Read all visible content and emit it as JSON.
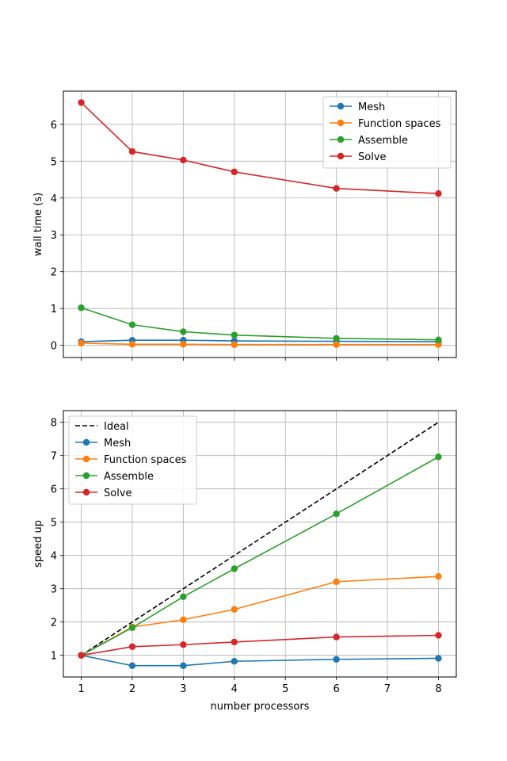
{
  "chart_data": [
    {
      "type": "line",
      "title": "",
      "xlabel": "",
      "ylabel": "wall time (s)",
      "x": [
        1,
        2,
        3,
        4,
        6,
        8
      ],
      "xlim": [
        0.65,
        8.35
      ],
      "ylim": [
        -0.33,
        6.9
      ],
      "xticks": [
        "1",
        "2",
        "3",
        "4",
        "5",
        "6",
        "7",
        "8"
      ],
      "show_xticklabels": false,
      "yticks": [
        "0",
        "1",
        "2",
        "3",
        "4",
        "5",
        "6"
      ],
      "grid": true,
      "legend_position": "top-right",
      "series": [
        {
          "name": "Mesh",
          "color": "#1f77b4",
          "marker": "circle",
          "dashed": false,
          "values": [
            0.1,
            0.14,
            0.14,
            0.12,
            0.11,
            0.1
          ]
        },
        {
          "name": "Function spaces",
          "color": "#ff7f0e",
          "marker": "circle",
          "dashed": false,
          "values": [
            0.06,
            0.03,
            0.03,
            0.02,
            0.02,
            0.02
          ]
        },
        {
          "name": "Assemble",
          "color": "#2ca02c",
          "marker": "circle",
          "dashed": false,
          "values": [
            1.02,
            0.56,
            0.37,
            0.28,
            0.19,
            0.15
          ]
        },
        {
          "name": "Solve",
          "color": "#d62728",
          "marker": "circle",
          "dashed": false,
          "values": [
            6.59,
            5.26,
            5.03,
            4.71,
            4.26,
            4.12
          ]
        }
      ]
    },
    {
      "type": "line",
      "title": "",
      "xlabel": "number processors",
      "ylabel": "speed up",
      "x": [
        1,
        2,
        3,
        4,
        6,
        8
      ],
      "xlim": [
        0.65,
        8.35
      ],
      "ylim": [
        0.35,
        8.35
      ],
      "xticks": [
        "1",
        "2",
        "3",
        "4",
        "5",
        "6",
        "7",
        "8"
      ],
      "show_xticklabels": true,
      "yticks": [
        "1",
        "2",
        "3",
        "4",
        "5",
        "6",
        "7",
        "8"
      ],
      "grid": true,
      "legend_position": "top-left",
      "series": [
        {
          "name": "Ideal",
          "color": "#000000",
          "marker": "none",
          "dashed": true,
          "x": [
            1,
            8
          ],
          "values": [
            1,
            8
          ]
        },
        {
          "name": "Mesh",
          "color": "#1f77b4",
          "marker": "circle",
          "dashed": false,
          "values": [
            1.0,
            0.69,
            0.69,
            0.82,
            0.88,
            0.91
          ]
        },
        {
          "name": "Function spaces",
          "color": "#ff7f0e",
          "marker": "circle",
          "dashed": false,
          "values": [
            1.0,
            1.85,
            2.07,
            2.38,
            3.21,
            3.37
          ]
        },
        {
          "name": "Assemble",
          "color": "#2ca02c",
          "marker": "circle",
          "dashed": false,
          "values": [
            1.0,
            1.83,
            2.76,
            3.6,
            5.25,
            6.96
          ]
        },
        {
          "name": "Solve",
          "color": "#d62728",
          "marker": "circle",
          "dashed": false,
          "values": [
            1.0,
            1.26,
            1.32,
            1.4,
            1.55,
            1.6
          ]
        }
      ]
    }
  ]
}
